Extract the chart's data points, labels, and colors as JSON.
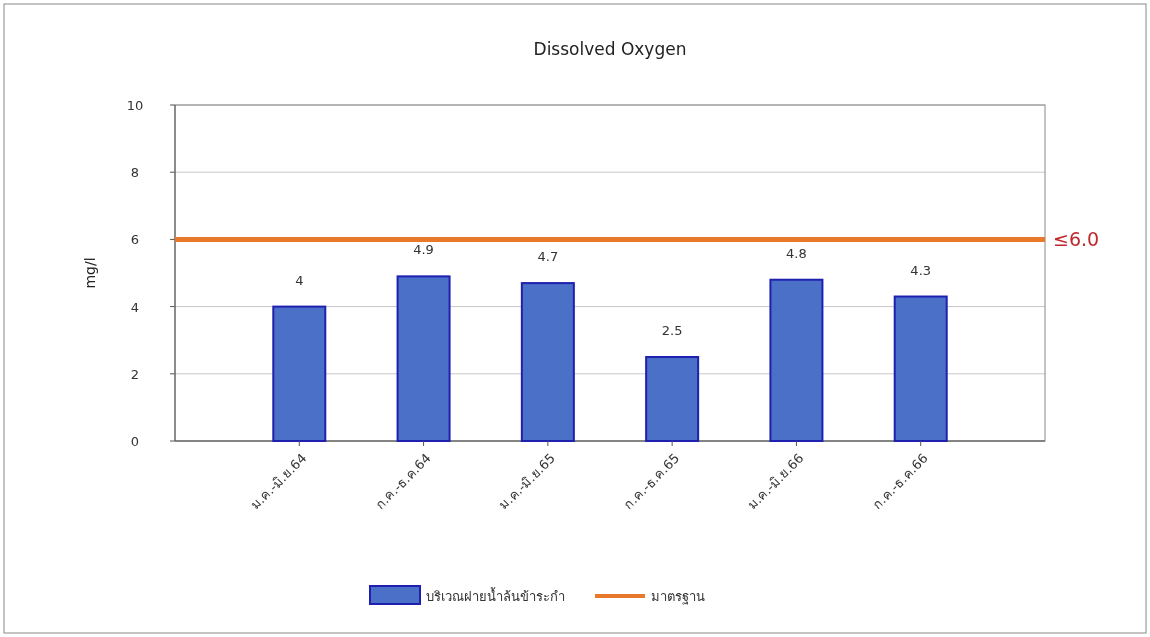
{
  "chart_data": {
    "type": "bar",
    "title": "Dissolved Oxygen",
    "ylabel": "mg/l",
    "categories": [
      "ม.ค.-มิ.ย.64",
      "ก.ค.-ธ.ค.64",
      "ม.ค.-มิ.ย.65",
      "ก.ค.-ธ.ค.65",
      "ม.ค.-มิ.ย.66",
      "ก.ค.-ธ.ค.66"
    ],
    "series": [
      {
        "name": "บริเวณฝายน้ำล้นข้าระกำ",
        "color": "#4a70c8",
        "values": [
          4,
          4.9,
          4.7,
          2.5,
          4.8,
          4.3
        ]
      }
    ],
    "ylim": [
      0,
      10
    ],
    "yticks": [
      0,
      2,
      4,
      6,
      8,
      10
    ],
    "grid": "y",
    "data_labels": true,
    "legend": "bottom",
    "ref_lines": [
      {
        "axis": "y",
        "value": 6,
        "label": "≤6.0",
        "color": "#e8782a"
      }
    ],
    "annotations": [
      "มาตรฐาน"
    ]
  }
}
